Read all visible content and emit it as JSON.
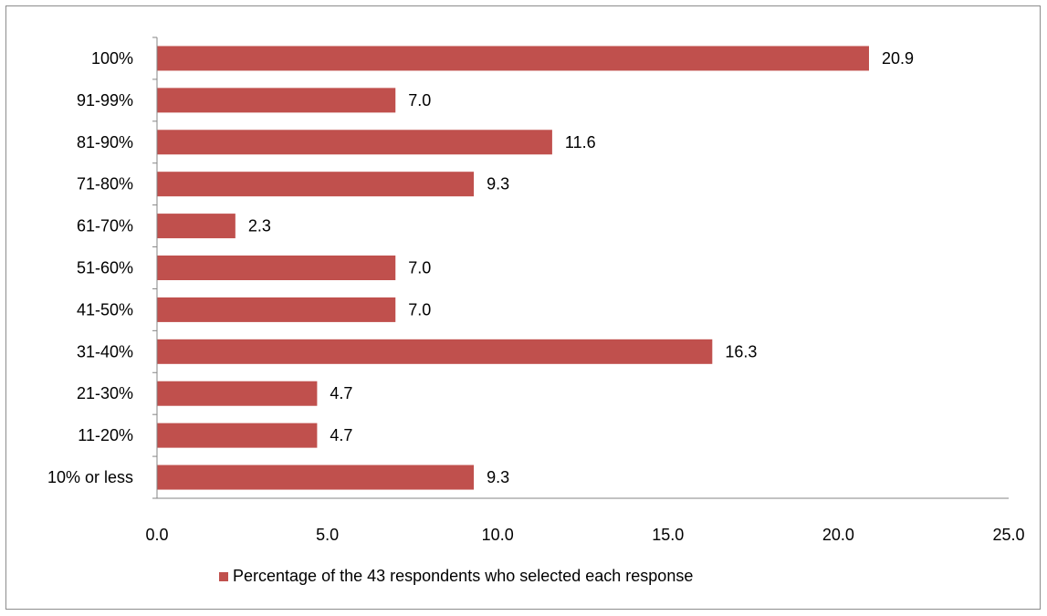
{
  "chart_data": {
    "type": "bar",
    "orientation": "horizontal",
    "categories": [
      "100%",
      "91-99%",
      "81-90%",
      "71-80%",
      "61-70%",
      "51-60%",
      "41-50%",
      "31-40%",
      "21-30%",
      "11-20%",
      "10% or less"
    ],
    "series": [
      {
        "name": "Percentage of the 43 respondents who selected each response",
        "values": [
          20.9,
          7.0,
          11.6,
          9.3,
          2.3,
          7.0,
          7.0,
          16.3,
          4.7,
          4.7,
          9.3
        ],
        "value_labels": [
          "20.9",
          "7.0",
          "11.6",
          "9.3",
          "2.3",
          "7.0",
          "7.0",
          "16.3",
          "4.7",
          "4.7",
          "9.3"
        ],
        "color": "#C0504D"
      }
    ],
    "xlim": [
      0,
      25
    ],
    "xticks": [
      0,
      5,
      10,
      15,
      20,
      25
    ],
    "xtick_labels": [
      "0.0",
      "5.0",
      "10.0",
      "15.0",
      "20.0",
      "25.0"
    ],
    "grid": false,
    "legend_position": "bottom",
    "title": "",
    "xlabel": "",
    "ylabel": ""
  }
}
